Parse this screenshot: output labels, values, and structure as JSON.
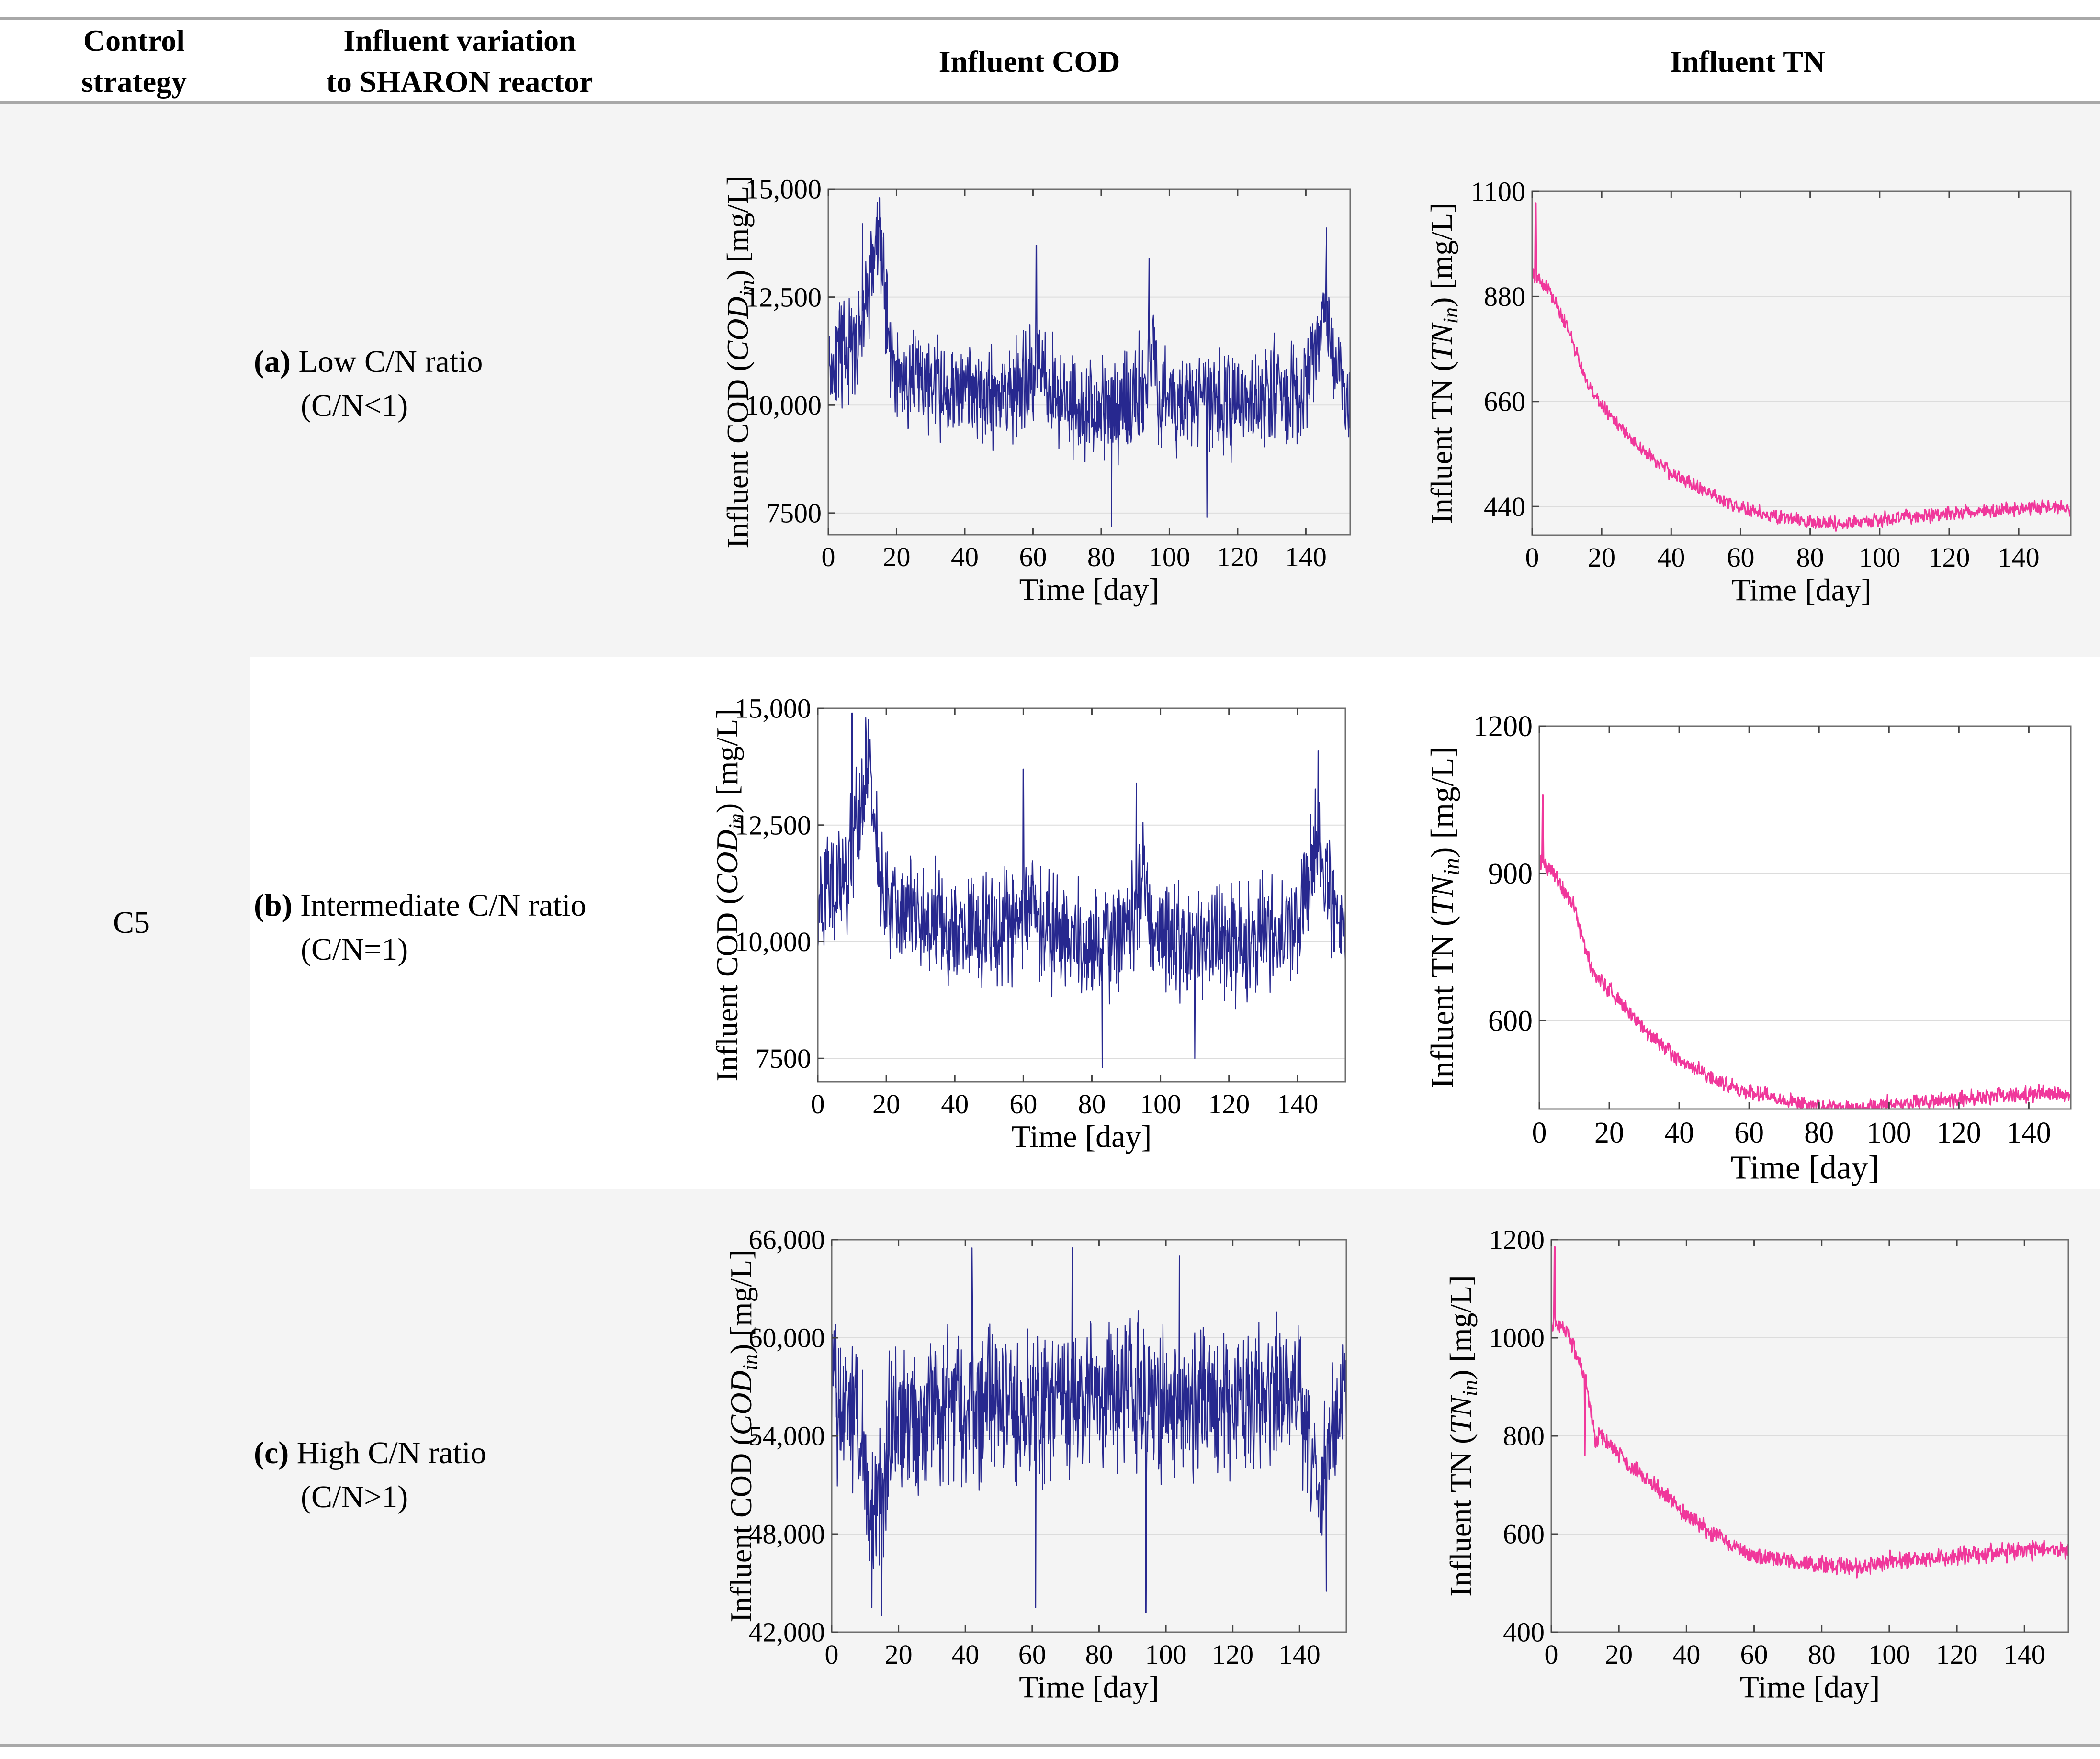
{
  "header": {
    "control_strategy": [
      "Control",
      "strategy"
    ],
    "influent_variation": [
      "Influent variation",
      "to SHARON reactor"
    ],
    "influent_cod": "Influent COD",
    "influent_tn": "Influent TN"
  },
  "strategy": "C5",
  "rows": [
    {
      "tag": "(a)",
      "label": "Low C/N ratio",
      "sub": "(C/N<1)"
    },
    {
      "tag": "(b)",
      "label": "Intermediate C/N ratio",
      "sub": "(C/N=1)"
    },
    {
      "tag": "(c)",
      "label": "High C/N ratio",
      "sub": "(C/N>1)"
    }
  ],
  "colors": {
    "cod": "#27288f",
    "tn": "#f0379b",
    "grid": "#dcdcdc"
  },
  "chart_data": [
    {
      "id": "cod-a",
      "type": "line",
      "series_name": "",
      "xlabel": "Time [day]",
      "ylabel": [
        "Influent COD (",
        "COD",
        "in",
        ") [mg/L]"
      ],
      "xlim": [
        0,
        153
      ],
      "ylim": [
        7000,
        15000
      ],
      "xticks": [
        0,
        20,
        40,
        60,
        80,
        100,
        120,
        140
      ],
      "yticks": [
        7500,
        10000,
        12500,
        15000
      ],
      "ytick_labels": [
        "7500",
        "10,000",
        "12,500",
        "15,000"
      ],
      "baseline": [
        [
          0,
          10900
        ],
        [
          8,
          11300
        ],
        [
          12,
          12800
        ],
        [
          15,
          14000
        ],
        [
          17,
          12000
        ],
        [
          20,
          10700
        ],
        [
          40,
          10200
        ],
        [
          60,
          10400
        ],
        [
          62,
          11500
        ],
        [
          65,
          10300
        ],
        [
          80,
          9800
        ],
        [
          93,
          10300
        ],
        [
          95,
          11800
        ],
        [
          97,
          10100
        ],
        [
          120,
          10000
        ],
        [
          140,
          10400
        ],
        [
          146,
          12300
        ],
        [
          150,
          10800
        ],
        [
          153,
          10100
        ]
      ],
      "amplitude": 1500,
      "spikes": [
        [
          15,
          14800
        ],
        [
          10,
          14200
        ],
        [
          61,
          13700
        ],
        [
          94,
          13400
        ],
        [
          146,
          14100
        ],
        [
          83,
          7200
        ],
        [
          111,
          7400
        ]
      ],
      "seed": 11,
      "n": 1100
    },
    {
      "id": "tn-a",
      "type": "line",
      "xlabel": "Time [day]",
      "ylabel": [
        "Influent TN (",
        "TN",
        "in",
        ") [mg/L]"
      ],
      "xlim": [
        0,
        155
      ],
      "ylim": [
        380,
        1100
      ],
      "xticks": [
        0,
        20,
        40,
        60,
        80,
        100,
        120,
        140
      ],
      "yticks": [
        440,
        660,
        880,
        1100
      ],
      "ytick_labels": [
        "440",
        "660",
        "880",
        "1100"
      ],
      "baseline": [
        [
          0,
          930
        ],
        [
          5,
          890
        ],
        [
          10,
          820
        ],
        [
          15,
          710
        ],
        [
          20,
          650
        ],
        [
          30,
          570
        ],
        [
          40,
          510
        ],
        [
          50,
          470
        ],
        [
          60,
          440
        ],
        [
          70,
          420
        ],
        [
          80,
          408
        ],
        [
          90,
          403
        ],
        [
          100,
          412
        ],
        [
          120,
          425
        ],
        [
          140,
          435
        ],
        [
          148,
          440
        ],
        [
          155,
          433
        ]
      ],
      "amplitude": 18,
      "spikes": [
        [
          1,
          1075
        ]
      ],
      "seed": 21,
      "n": 1000
    },
    {
      "id": "cod-b",
      "type": "line",
      "xlabel": "Time [day]",
      "ylabel": [
        "Influent COD (",
        "COD",
        "in",
        ") [mg/L]"
      ],
      "xlim": [
        0,
        154
      ],
      "ylim": [
        7000,
        15000
      ],
      "xticks": [
        0,
        20,
        40,
        60,
        80,
        100,
        120,
        140
      ],
      "yticks": [
        7500,
        10000,
        12500,
        15000
      ],
      "ytick_labels": [
        "7500",
        "10,000",
        "12,500",
        "15,000"
      ],
      "baseline": [
        [
          0,
          10900
        ],
        [
          8,
          11300
        ],
        [
          12,
          12900
        ],
        [
          15,
          14000
        ],
        [
          17,
          12000
        ],
        [
          20,
          10700
        ],
        [
          40,
          10200
        ],
        [
          60,
          10400
        ],
        [
          62,
          11500
        ],
        [
          65,
          10300
        ],
        [
          80,
          9800
        ],
        [
          93,
          10300
        ],
        [
          95,
          11800
        ],
        [
          97,
          10100
        ],
        [
          120,
          10000
        ],
        [
          140,
          10400
        ],
        [
          146,
          12300
        ],
        [
          150,
          10800
        ],
        [
          154,
          10100
        ]
      ],
      "amplitude": 1500,
      "spikes": [
        [
          14,
          14800
        ],
        [
          10,
          14900
        ],
        [
          60,
          13700
        ],
        [
          93,
          13400
        ],
        [
          146,
          14100
        ],
        [
          83,
          7300
        ],
        [
          110,
          7500
        ]
      ],
      "seed": 12,
      "n": 1100
    },
    {
      "id": "tn-b",
      "type": "line",
      "xlabel": "Time [day]",
      "ylabel": [
        "Influent TN (",
        "TN",
        "in",
        ") [mg/L]"
      ],
      "xlim": [
        0,
        152
      ],
      "ylim": [
        420,
        1200
      ],
      "xticks": [
        0,
        20,
        40,
        60,
        80,
        100,
        120,
        140
      ],
      "yticks": [
        600,
        900,
        1200
      ],
      "ytick_labels": [
        "600",
        "900",
        "1200"
      ],
      "baseline": [
        [
          0,
          930
        ],
        [
          5,
          890
        ],
        [
          10,
          830
        ],
        [
          15,
          700
        ],
        [
          20,
          665
        ],
        [
          30,
          580
        ],
        [
          40,
          520
        ],
        [
          50,
          480
        ],
        [
          60,
          455
        ],
        [
          70,
          437
        ],
        [
          80,
          425
        ],
        [
          90,
          420
        ],
        [
          100,
          430
        ],
        [
          120,
          440
        ],
        [
          140,
          450
        ],
        [
          148,
          453
        ],
        [
          152,
          446
        ]
      ],
      "amplitude": 20,
      "spikes": [
        [
          1,
          1060
        ]
      ],
      "seed": 22,
      "n": 1000
    },
    {
      "id": "cod-c",
      "type": "line",
      "xlabel": "Time [day]",
      "ylabel": [
        "Influent COD (",
        "COD",
        "in",
        ") [mg/L]"
      ],
      "xlim": [
        0,
        154
      ],
      "ylim": [
        42000,
        66000
      ],
      "xticks": [
        0,
        20,
        40,
        60,
        80,
        100,
        120,
        140
      ],
      "yticks": [
        42000,
        48000,
        54000,
        60000,
        66000
      ],
      "ytick_labels": [
        "42,000",
        "48,000",
        "54,000",
        "60,000",
        "66,000"
      ],
      "baseline": [
        [
          0,
          56000
        ],
        [
          8,
          55500
        ],
        [
          12,
          49000
        ],
        [
          15,
          50500
        ],
        [
          18,
          55000
        ],
        [
          40,
          56000
        ],
        [
          60,
          55500
        ],
        [
          80,
          56500
        ],
        [
          100,
          56000
        ],
        [
          120,
          56200
        ],
        [
          140,
          56500
        ],
        [
          146,
          50000
        ],
        [
          150,
          55000
        ],
        [
          154,
          56000
        ]
      ],
      "amplitude": 5500,
      "spikes": [
        [
          15,
          43000
        ],
        [
          12,
          43500
        ],
        [
          61,
          43500
        ],
        [
          94,
          43200
        ],
        [
          148,
          44500
        ],
        [
          42,
          65500
        ],
        [
          72,
          65500
        ],
        [
          104,
          65000
        ]
      ],
      "seed": 13,
      "n": 1100
    },
    {
      "id": "tn-c",
      "type": "line",
      "xlabel": "Time [day]",
      "ylabel": [
        "Influent TN (",
        "TN",
        "in",
        ") [mg/L]"
      ],
      "xlim": [
        0,
        153
      ],
      "ylim": [
        400,
        1200
      ],
      "xticks": [
        0,
        20,
        40,
        60,
        80,
        100,
        120,
        140
      ],
      "yticks": [
        400,
        600,
        800,
        1000,
        1200
      ],
      "ytick_labels": [
        "400",
        "600",
        "800",
        "1000",
        "1200"
      ],
      "baseline": [
        [
          0,
          1030
        ],
        [
          5,
          1010
        ],
        [
          10,
          920
        ],
        [
          13,
          790
        ],
        [
          15,
          800
        ],
        [
          20,
          760
        ],
        [
          30,
          700
        ],
        [
          40,
          640
        ],
        [
          50,
          590
        ],
        [
          60,
          555
        ],
        [
          70,
          545
        ],
        [
          80,
          538
        ],
        [
          90,
          530
        ],
        [
          100,
          545
        ],
        [
          120,
          555
        ],
        [
          140,
          565
        ],
        [
          150,
          570
        ],
        [
          153,
          565
        ]
      ],
      "amplitude": 22,
      "spikes": [
        [
          1,
          1185
        ],
        [
          10,
          760
        ]
      ],
      "seed": 23,
      "n": 1000
    }
  ]
}
